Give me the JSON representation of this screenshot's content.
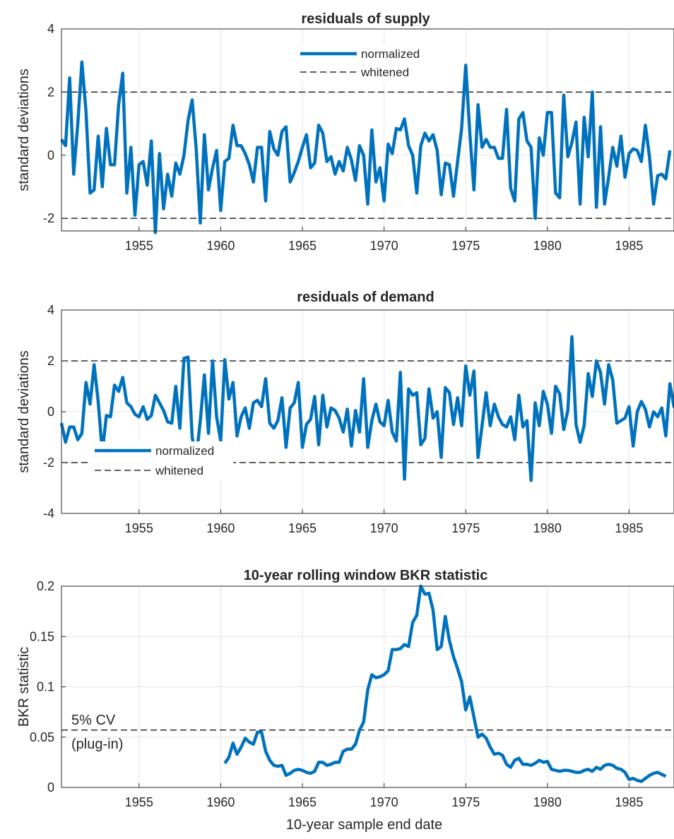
{
  "colors": {
    "series": "#0072BD",
    "threshold": "#000000",
    "grid": "#e3e3e3",
    "axis": "#262626"
  },
  "chart_data": [
    {
      "type": "line",
      "title": "residuals of supply",
      "xlabel": "",
      "ylabel": "standard deviations",
      "xlim": [
        1950.25,
        1987.75
      ],
      "ylim": [
        -2.4,
        4
      ],
      "x_ticks": [
        1955,
        1960,
        1965,
        1970,
        1975,
        1980,
        1985
      ],
      "y_ticks": [
        -2,
        0,
        2,
        4
      ],
      "grid": true,
      "legend": {
        "position": "top-center",
        "entries": [
          "normalized",
          "whitened"
        ]
      },
      "series": [
        {
          "name": "normalized",
          "style": "solid",
          "x_start": 1950.25,
          "x_step": 0.25,
          "values": [
            0.5,
            0.3,
            2.45,
            -0.6,
            1.0,
            2.95,
            1.4,
            -1.2,
            -1.1,
            0.6,
            -1.0,
            0.85,
            -0.3,
            -0.3,
            1.6,
            2.6,
            -1.2,
            0.25,
            -1.9,
            -0.3,
            -0.2,
            -0.95,
            0.45,
            -2.45,
            0.05,
            -1.7,
            -0.6,
            -1.3,
            -0.25,
            -0.6,
            0.0,
            1.1,
            1.75,
            0.2,
            -2.15,
            0.65,
            -1.1,
            -0.4,
            0.15,
            -1.75,
            -0.2,
            -0.1,
            0.95,
            0.3,
            0.3,
            0.05,
            -0.3,
            -0.85,
            0.25,
            0.25,
            -1.45,
            0.75,
            0.2,
            0.0,
            0.75,
            0.9,
            -0.85,
            -0.55,
            -0.2,
            0.25,
            0.65,
            -0.4,
            -0.25,
            0.95,
            0.7,
            -0.2,
            -0.05,
            -0.6,
            -0.2,
            -0.5,
            0.25,
            -0.15,
            -0.8,
            0.3,
            0.0,
            -1.55,
            0.8,
            -0.85,
            -0.4,
            -1.45,
            0.35,
            0.05,
            0.85,
            0.8,
            1.15,
            0.3,
            0.0,
            -1.2,
            0.3,
            0.7,
            0.45,
            0.65,
            0.15,
            -1.25,
            -0.25,
            -0.3,
            -1.3,
            -0.2,
            0.85,
            2.85,
            0.7,
            -1.1,
            1.6,
            0.25,
            0.5,
            0.25,
            0.25,
            -0.1,
            -0.1,
            1.45,
            -1.05,
            -1.45,
            1.15,
            1.35,
            0.45,
            0.25,
            -2.0,
            0.55,
            0.0,
            1.35,
            1.35,
            -1.2,
            -1.35,
            1.9,
            -0.05,
            0.4,
            1.05,
            -1.55,
            1.2,
            -0.05,
            2.0,
            -1.65,
            0.9,
            -1.55,
            -0.7,
            0.25,
            -0.35,
            0.6,
            -0.7,
            0.05,
            0.2,
            0.15,
            -0.2,
            0.95,
            -0.05,
            -1.55,
            -0.65,
            -0.6,
            -0.75,
            0.15
          ]
        },
        {
          "name": "whitened",
          "style": "dashed",
          "hlines": [
            2,
            -2
          ]
        }
      ]
    },
    {
      "type": "line",
      "title": "residuals of demand",
      "xlabel": "",
      "ylabel": "standard deviations",
      "xlim": [
        1950.25,
        1987.75
      ],
      "ylim": [
        -4,
        4
      ],
      "x_ticks": [
        1955,
        1960,
        1965,
        1970,
        1975,
        1980,
        1985
      ],
      "y_ticks": [
        -4,
        -2,
        0,
        2,
        4
      ],
      "grid": true,
      "legend": {
        "position": "bottom-left",
        "entries": [
          "normalized",
          "whitened"
        ]
      },
      "series": [
        {
          "name": "normalized",
          "style": "solid",
          "x_start": 1950.25,
          "x_step": 0.25,
          "values": [
            -0.45,
            -1.2,
            -0.6,
            -0.6,
            -1.1,
            -0.85,
            1.15,
            0.3,
            1.85,
            0.4,
            -1.6,
            -0.15,
            -0.2,
            1.05,
            0.8,
            1.35,
            0.35,
            0.2,
            -0.1,
            -0.2,
            0.2,
            -0.3,
            -0.15,
            0.65,
            0.35,
            0.05,
            -0.4,
            -0.45,
            1.0,
            -0.65,
            2.1,
            2.15,
            -1.0,
            -1.85,
            -0.35,
            1.45,
            -0.85,
            2.0,
            -0.2,
            -1.15,
            2.05,
            0.5,
            1.15,
            -0.95,
            -0.2,
            0.15,
            -0.65,
            0.35,
            0.45,
            0.2,
            1.3,
            -0.45,
            -0.65,
            -0.35,
            0.55,
            -1.4,
            0.15,
            0.35,
            1.15,
            -1.4,
            -0.5,
            -0.3,
            0.6,
            -1.3,
            0.65,
            -0.6,
            0.15,
            0.05,
            -0.25,
            -0.8,
            0.1,
            -1.35,
            0.05,
            -0.8,
            1.3,
            -1.4,
            -0.35,
            0.3,
            -0.4,
            -0.55,
            0.45,
            -0.8,
            -1.15,
            1.55,
            -2.65,
            0.9,
            0.65,
            0.75,
            -1.3,
            -1.05,
            0.9,
            -0.25,
            0.0,
            -1.8,
            0.95,
            0.75,
            -0.5,
            0.55,
            -0.55,
            1.8,
            0.65,
            1.6,
            -1.8,
            -0.55,
            0.75,
            -0.55,
            0.3,
            -0.2,
            -0.5,
            -0.6,
            -0.2,
            -1.1,
            0.65,
            -0.6,
            -0.35,
            -2.7,
            0.35,
            -0.55,
            0.8,
            0.3,
            -0.85,
            1.0,
            0.7,
            -0.7,
            0.05,
            2.95,
            -0.5,
            -1.2,
            -0.55,
            1.5,
            0.6,
            2.0,
            1.55,
            0.3,
            1.85,
            1.25,
            -0.45,
            -0.35,
            -0.25,
            0.2,
            -1.35,
            0.0,
            0.4,
            0.1,
            -0.6,
            0.0,
            -0.2,
            0.15,
            -0.95,
            1.1,
            0.2,
            0.05,
            -0.9,
            -0.5,
            -0.45,
            -1.25
          ]
        },
        {
          "name": "whitened",
          "style": "dashed",
          "hlines": [
            2,
            -2
          ]
        }
      ]
    },
    {
      "type": "line",
      "title": "10-year rolling window BKR statistic",
      "xlabel": "10-year sample end date",
      "ylabel": "BKR statistic",
      "xlim": [
        1950.25,
        1987.75
      ],
      "ylim": [
        0,
        0.2
      ],
      "x_ticks": [
        1955,
        1960,
        1965,
        1970,
        1975,
        1980,
        1985
      ],
      "y_ticks": [
        0,
        0.05,
        0.1,
        0.15,
        0.2
      ],
      "grid": true,
      "annotation": {
        "text_line1": "5% CV",
        "text_line2": "(plug-in)",
        "value": 0.057
      },
      "series": [
        {
          "name": "",
          "style": "solid",
          "x_start": 1960.25,
          "x_step": 0.25,
          "values": [
            0.024,
            0.03,
            0.044,
            0.033,
            0.04,
            0.049,
            0.045,
            0.043,
            0.055,
            0.055,
            0.036,
            0.027,
            0.022,
            0.021,
            0.022,
            0.012,
            0.014,
            0.017,
            0.018,
            0.017,
            0.015,
            0.014,
            0.016,
            0.025,
            0.025,
            0.022,
            0.023,
            0.025,
            0.025,
            0.036,
            0.038,
            0.038,
            0.043,
            0.057,
            0.065,
            0.097,
            0.112,
            0.109,
            0.11,
            0.112,
            0.116,
            0.137,
            0.137,
            0.138,
            0.142,
            0.14,
            0.164,
            0.171,
            0.2,
            0.192,
            0.193,
            0.176,
            0.137,
            0.14,
            0.17,
            0.146,
            0.13,
            0.118,
            0.105,
            0.077,
            0.09,
            0.07,
            0.05,
            0.053,
            0.049,
            0.04,
            0.033,
            0.034,
            0.032,
            0.023,
            0.02,
            0.027,
            0.029,
            0.023,
            0.023,
            0.022,
            0.024,
            0.027,
            0.025,
            0.026,
            0.018,
            0.017,
            0.016,
            0.017,
            0.017,
            0.016,
            0.015,
            0.015,
            0.017,
            0.018,
            0.016,
            0.02,
            0.018,
            0.022,
            0.023,
            0.022,
            0.019,
            0.018,
            0.015,
            0.008,
            0.009,
            0.007,
            0.006,
            0.009,
            0.012,
            0.014,
            0.015,
            0.013,
            0.011
          ]
        }
      ]
    }
  ]
}
